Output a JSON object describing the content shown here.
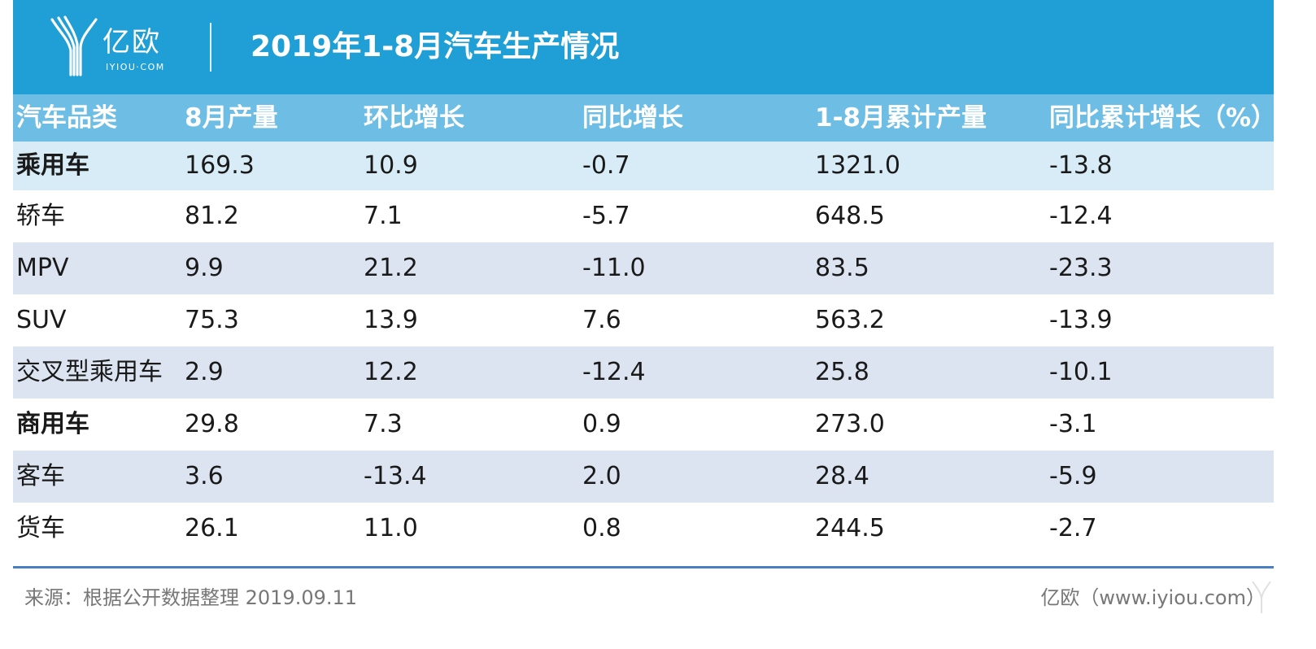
{
  "brand": {
    "name_cn": "亿欧",
    "domain": "IYIOU·COM"
  },
  "title": "2019年1-8月汽车生产情况",
  "colors": {
    "banner": "#1f9fd5",
    "header_row": "#6dbde4",
    "alt_row": "#dce4f2",
    "highlight_row": "#d7ecf6",
    "rule": "#4a7fc1"
  },
  "chart_data": {
    "type": "table",
    "title": "2019年1-8月汽车生产情况",
    "columns": [
      "汽车品类",
      "8月产量",
      "环比增长",
      "同比增长",
      "1-8月累计产量",
      "同比累计增长（%）"
    ],
    "rows": [
      {
        "cells": [
          "乘用车",
          "169.3",
          "10.9",
          "-0.7",
          "1321.0",
          "-13.8"
        ],
        "bold": true,
        "style": "first"
      },
      {
        "cells": [
          "轿车",
          "81.2",
          "7.1",
          "-5.7",
          "648.5",
          "-12.4"
        ],
        "bold": false,
        "style": "plain"
      },
      {
        "cells": [
          "MPV",
          "9.9",
          "21.2",
          "-11.0",
          "83.5",
          "-23.3"
        ],
        "bold": false,
        "style": "alt"
      },
      {
        "cells": [
          "SUV",
          "75.3",
          "13.9",
          "7.6",
          "563.2",
          "-13.9"
        ],
        "bold": false,
        "style": "plain"
      },
      {
        "cells": [
          "交叉型乘用车",
          "2.9",
          "12.2",
          "-12.4",
          "25.8",
          "-10.1"
        ],
        "bold": false,
        "style": "alt"
      },
      {
        "cells": [
          "商用车",
          "29.8",
          "7.3",
          "0.9",
          "273.0",
          "-3.1"
        ],
        "bold": true,
        "style": "plain"
      },
      {
        "cells": [
          "客车",
          "3.6",
          "-13.4",
          "2.0",
          "28.4",
          "-5.9"
        ],
        "bold": false,
        "style": "alt"
      },
      {
        "cells": [
          "货车",
          "26.1",
          "11.0",
          "0.8",
          "244.5",
          "-2.7"
        ],
        "bold": false,
        "style": "plain"
      }
    ]
  },
  "footer": {
    "source": "来源：根据公开数据整理 2019.09.11",
    "credit": "亿欧（www.iyiou.com）"
  }
}
